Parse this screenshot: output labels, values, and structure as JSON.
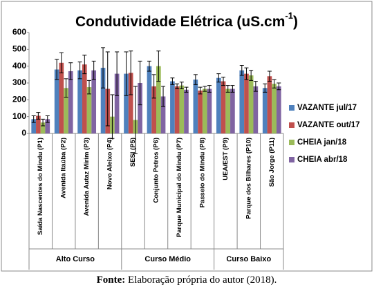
{
  "chart_data": {
    "type": "bar",
    "title": "Condutividade Elétrica (uS.cm",
    "title_superscript": "-1",
    "title_suffix": ")",
    "categories": [
      "Saída Nascentes do Mindu (P1)",
      "Avenida Itaúba (P2)",
      "Avenida Autaz Mirim (P3)",
      "Novo Aleixo (P4)",
      "SESI (P5)",
      "Conjunto Petros (P6)",
      "Parque Municipal do Mindu (P7)",
      "Passeio do Mindu (P8)",
      "UEA/EST (P9)",
      "Parque dos Bilhares (P10)",
      "São Jorge (P11)"
    ],
    "groups": [
      {
        "name": "Alto Curso",
        "size": 4
      },
      {
        "name": "Curso Médio",
        "size": 4
      },
      {
        "name": "Curso Baixo",
        "size": 3
      }
    ],
    "series": [
      {
        "name": "VAZANTE jul/17",
        "color": "#4f81bd",
        "values": [
          85,
          380,
          375,
          390,
          355,
          400,
          310,
          320,
          330,
          375,
          270
        ],
        "errors": [
          20,
          60,
          50,
          120,
          130,
          30,
          20,
          30,
          25,
          30,
          25
        ]
      },
      {
        "name": "VAZANTE out/17",
        "color": "#c0504d",
        "values": [
          105,
          420,
          410,
          265,
          360,
          280,
          280,
          255,
          310,
          355,
          340
        ],
        "errors": [
          20,
          60,
          55,
          220,
          130,
          70,
          15,
          20,
          25,
          35,
          30
        ]
      },
      {
        "name": "CHEIA jan/18",
        "color": "#9bbb59",
        "values": [
          65,
          270,
          275,
          100,
          80,
          400,
          285,
          265,
          265,
          345,
          295
        ],
        "errors": [
          20,
          55,
          40,
          130,
          200,
          90,
          20,
          15,
          20,
          30,
          25
        ]
      },
      {
        "name": "CHEIA abr/18",
        "color": "#8064a2",
        "values": [
          85,
          370,
          375,
          355,
          300,
          220,
          260,
          265,
          265,
          280,
          280
        ],
        "errors": [
          20,
          50,
          55,
          130,
          130,
          60,
          15,
          20,
          20,
          30,
          20
        ]
      }
    ],
    "ylim": [
      0,
      600
    ],
    "yticks": [
      0,
      100,
      200,
      300,
      400,
      500,
      600
    ],
    "grid": false,
    "source_label": "Fonte:",
    "source": "Elaboração própria do autor (2018)."
  }
}
